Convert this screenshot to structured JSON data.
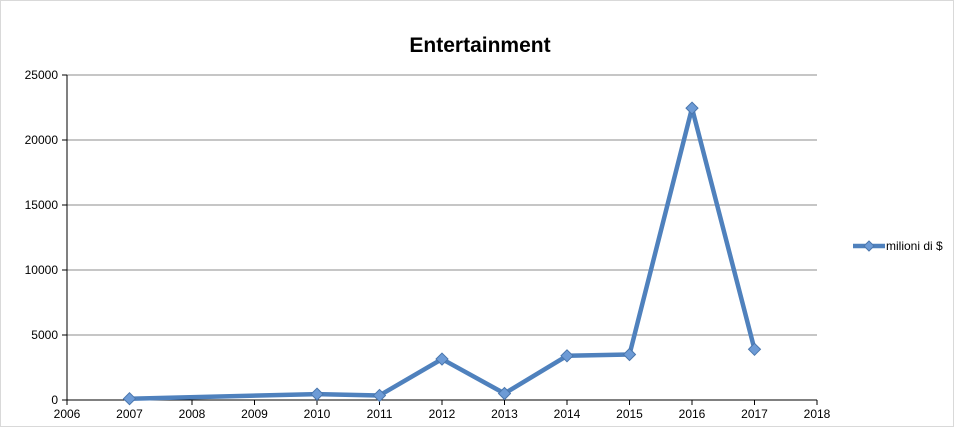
{
  "chart_data": {
    "type": "line",
    "title": "Entertainment",
    "xlabel": "",
    "ylabel": "",
    "xlim": [
      2006,
      2018
    ],
    "ylim": [
      0,
      25000
    ],
    "x_ticks": [
      "2006",
      "2007",
      "2008",
      "2009",
      "2010",
      "2011",
      "2012",
      "2013",
      "2014",
      "2015",
      "2016",
      "2017",
      "2018"
    ],
    "y_ticks": [
      "0",
      "5000",
      "10000",
      "15000",
      "20000",
      "25000"
    ],
    "grid": "horizontal",
    "legend_position": "right",
    "series": [
      {
        "name": "milioni di $",
        "color": "#4f81bd",
        "marker": "diamond",
        "x": [
          2007,
          2010,
          2011,
          2012,
          2013,
          2014,
          2015,
          2016,
          2017
        ],
        "y": [
          100,
          450,
          350,
          3150,
          500,
          3400,
          3500,
          22450,
          3900
        ]
      }
    ]
  }
}
